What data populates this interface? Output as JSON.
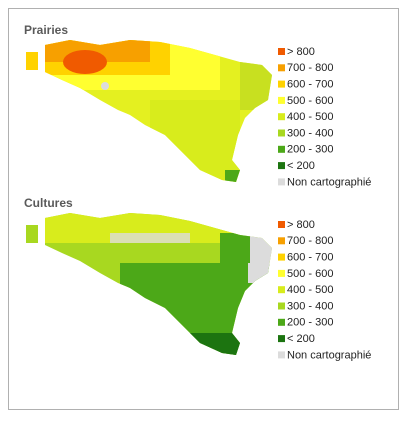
{
  "panels": [
    {
      "title": "Prairies",
      "legend": [
        {
          "label": "> 800",
          "color": "#f05a00"
        },
        {
          "label": "700 - 800",
          "color": "#f7a000"
        },
        {
          "label": "600 - 700",
          "color": "#ffd200"
        },
        {
          "label": "500 - 600",
          "color": "#ffff30"
        },
        {
          "label": "400 - 500",
          "color": "#d8ec1c"
        },
        {
          "label": "300 - 400",
          "color": "#a8d820"
        },
        {
          "label": "200 - 300",
          "color": "#4ca818"
        },
        {
          "label": "< 200",
          "color": "#1c7410"
        },
        {
          "label": "Non cartographié",
          "color": "#dcdcdc"
        }
      ]
    },
    {
      "title": "Cultures",
      "legend": [
        {
          "label": "> 800",
          "color": "#f05a00"
        },
        {
          "label": "700 - 800",
          "color": "#f7a000"
        },
        {
          "label": "600 - 700",
          "color": "#ffd200"
        },
        {
          "label": "500 - 600",
          "color": "#ffff30"
        },
        {
          "label": "400 - 500",
          "color": "#d8ec1c"
        },
        {
          "label": "300 - 400",
          "color": "#a8d820"
        },
        {
          "label": "200 - 300",
          "color": "#4ca818"
        },
        {
          "label": "< 200",
          "color": "#1c7410"
        },
        {
          "label": "Non cartographié",
          "color": "#dcdcdc"
        }
      ]
    }
  ]
}
